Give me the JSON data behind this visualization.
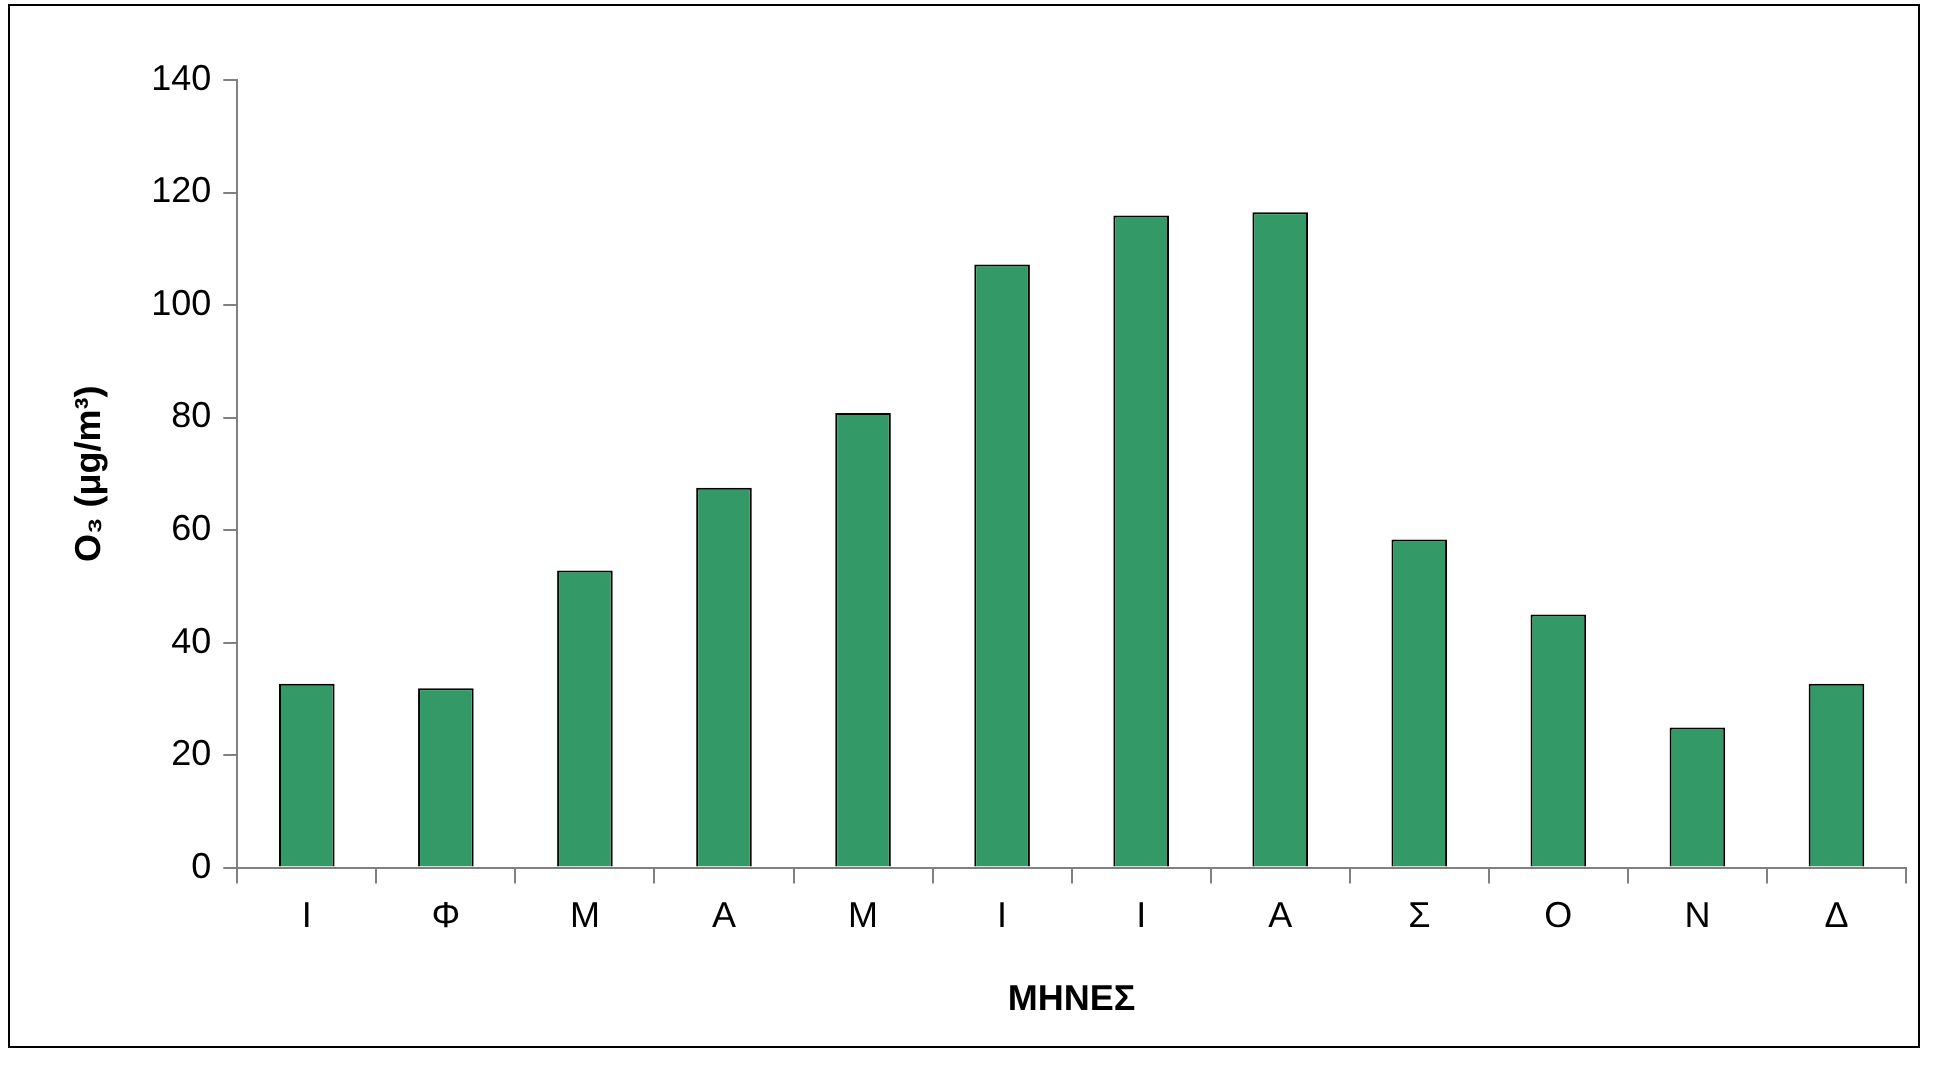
{
  "chart_data": {
    "type": "bar",
    "xlabel": "ΜΗΝΕΣ",
    "ylabel": "O₃ (μg/m³)",
    "categories": [
      "Ι",
      "Φ",
      "Μ",
      "Α",
      "Μ",
      "Ι",
      "Ι",
      "Α",
      "Σ",
      "Ο",
      "Ν",
      "Δ"
    ],
    "values": [
      32.7,
      31.9,
      52.8,
      67.5,
      80.8,
      107.2,
      115.9,
      116.5,
      58.3,
      45.0,
      24.9,
      32.7
    ],
    "color": "#339966",
    "ylim": [
      0,
      140
    ],
    "yticks": [
      0,
      20,
      40,
      60,
      80,
      100,
      120,
      140
    ],
    "grid": false,
    "legend": false
  }
}
